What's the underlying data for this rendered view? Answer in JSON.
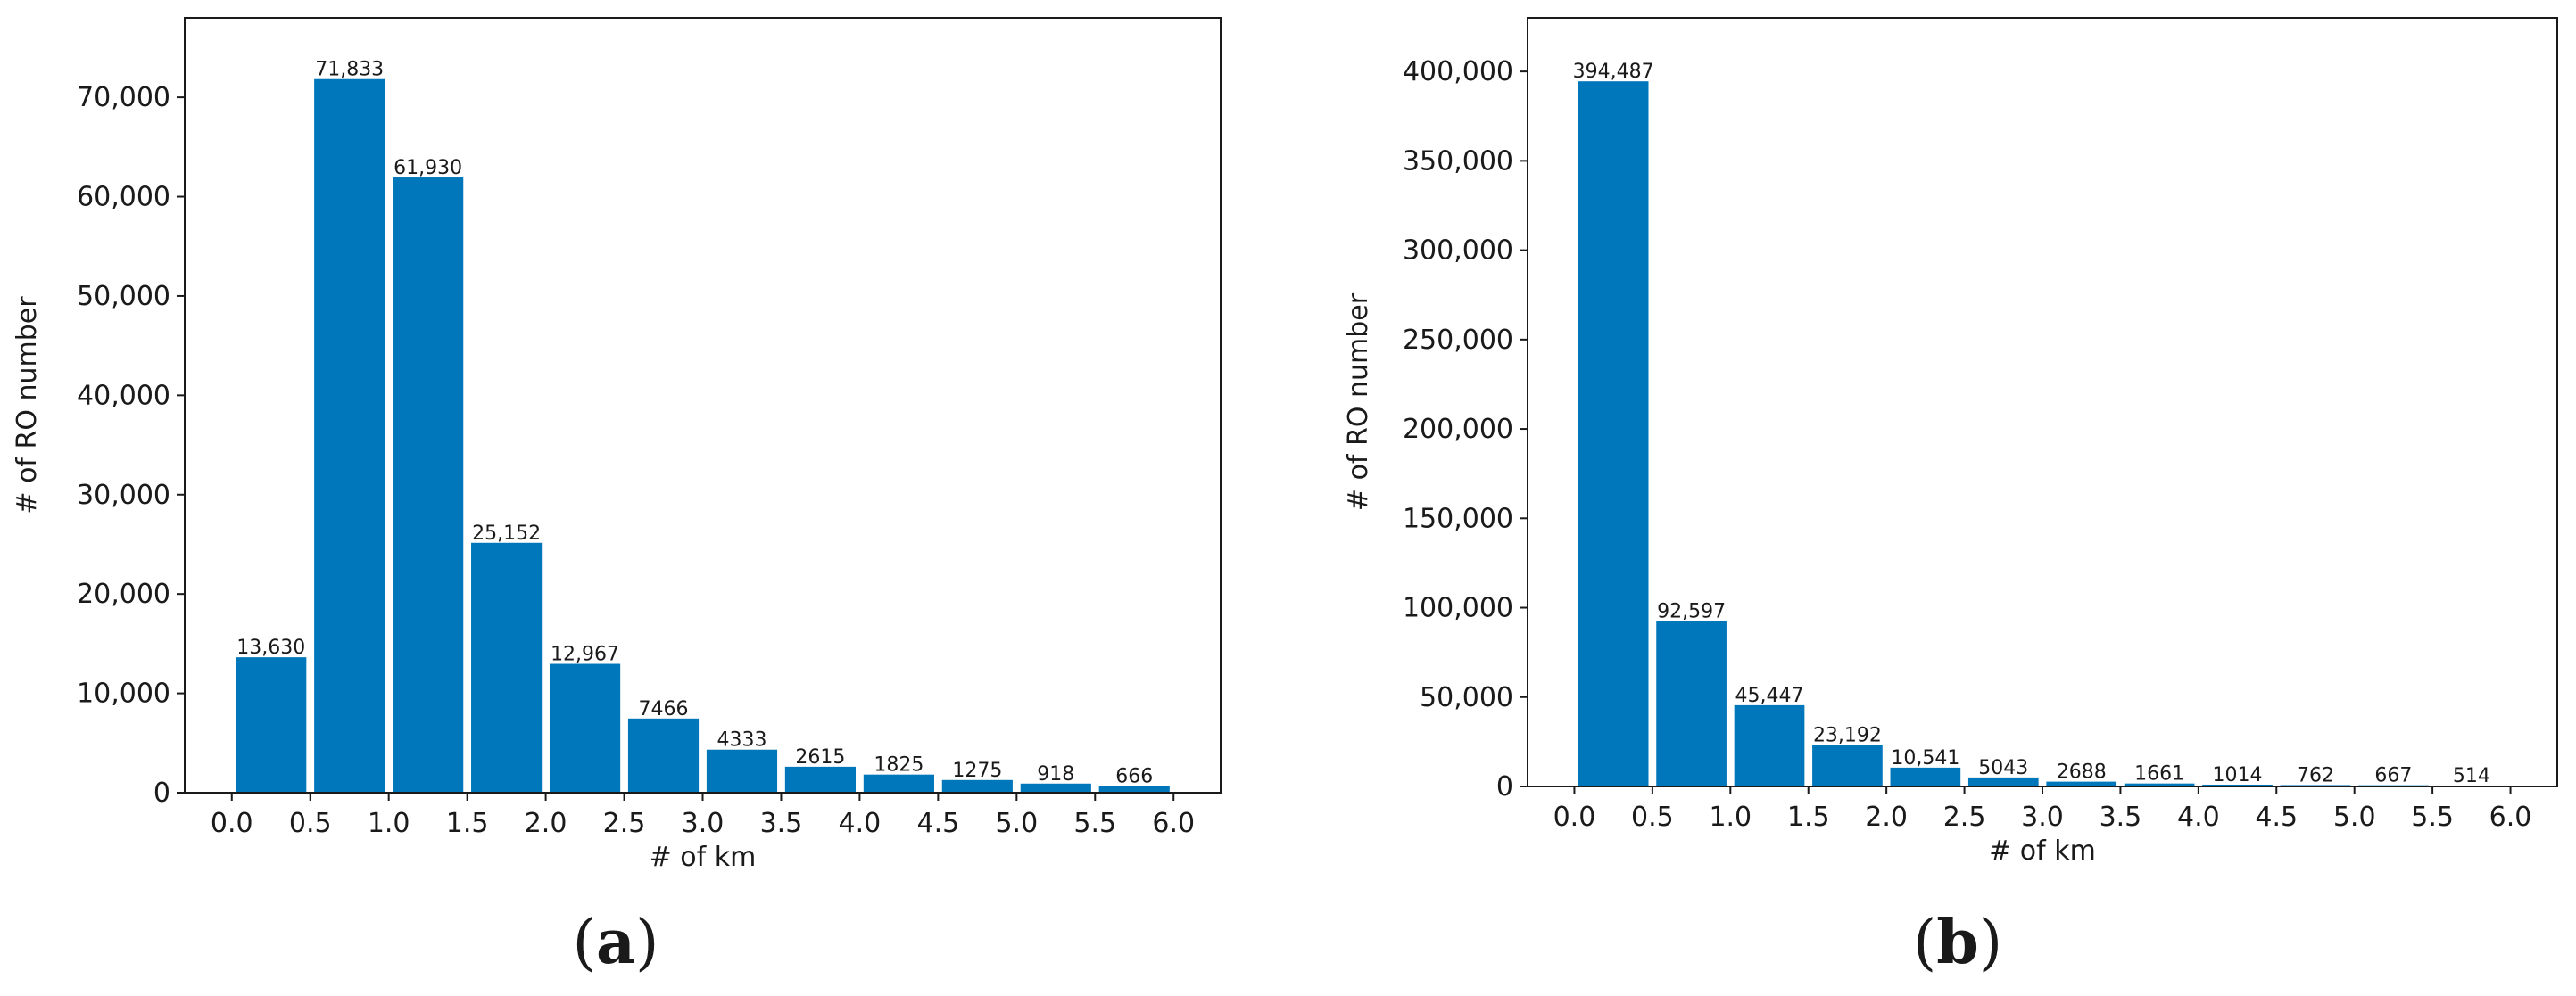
{
  "chart_data": [
    {
      "type": "bar",
      "panel_label": {
        "open": "(",
        "letter": "a",
        "close": ")"
      },
      "xlabel": "# of km",
      "ylabel": "# of RO number",
      "xlim": [
        -0.3,
        6.3
      ],
      "ylim": [
        0,
        78000
      ],
      "xticks": [
        0.0,
        0.5,
        1.0,
        1.5,
        2.0,
        2.5,
        3.0,
        3.5,
        4.0,
        4.5,
        5.0,
        5.5,
        6.0
      ],
      "xtick_labels": [
        "0.0",
        "0.5",
        "1.0",
        "1.5",
        "2.0",
        "2.5",
        "3.0",
        "3.5",
        "4.0",
        "4.5",
        "5.0",
        "5.5",
        "6.0"
      ],
      "yticks": [
        0,
        10000,
        20000,
        30000,
        40000,
        50000,
        60000,
        70000
      ],
      "ytick_labels": [
        "0",
        "10,000",
        "20,000",
        "30,000",
        "40,000",
        "50,000",
        "60,000",
        "70,000"
      ],
      "bin_edges": [
        0.0,
        0.5,
        1.0,
        1.5,
        2.0,
        2.5,
        3.0,
        3.5,
        4.0,
        4.5,
        5.0,
        5.5,
        6.0
      ],
      "values": [
        13630,
        71833,
        61930,
        25152,
        12967,
        7466,
        4333,
        2615,
        1825,
        1275,
        918,
        666
      ],
      "value_labels": [
        "13,630",
        "71,833",
        "61,930",
        "25,152",
        "12,967",
        "7466",
        "4333",
        "2615",
        "1825",
        "1275",
        "918",
        "666"
      ],
      "bar_color": "#0077bb",
      "grid": false
    },
    {
      "type": "bar",
      "panel_label": {
        "open": "(",
        "letter": "b",
        "close": ")"
      },
      "xlabel": "# of km",
      "ylabel": "# of RO number",
      "xlim": [
        -0.3,
        6.3
      ],
      "ylim": [
        0,
        430000
      ],
      "xticks": [
        0.0,
        0.5,
        1.0,
        1.5,
        2.0,
        2.5,
        3.0,
        3.5,
        4.0,
        4.5,
        5.0,
        5.5,
        6.0
      ],
      "xtick_labels": [
        "0.0",
        "0.5",
        "1.0",
        "1.5",
        "2.0",
        "2.5",
        "3.0",
        "3.5",
        "4.0",
        "4.5",
        "5.0",
        "5.5",
        "6.0"
      ],
      "yticks": [
        0,
        50000,
        100000,
        150000,
        200000,
        250000,
        300000,
        350000,
        400000
      ],
      "ytick_labels": [
        "0",
        "50,000",
        "100,000",
        "150,000",
        "200,000",
        "250,000",
        "300,000",
        "350,000",
        "400,000"
      ],
      "bin_edges": [
        0.0,
        0.5,
        1.0,
        1.5,
        2.0,
        2.5,
        3.0,
        3.5,
        4.0,
        4.5,
        5.0,
        5.5,
        6.0
      ],
      "values": [
        394487,
        92597,
        45447,
        23192,
        10541,
        5043,
        2688,
        1661,
        1014,
        762,
        667,
        514
      ],
      "value_labels": [
        "394,487",
        "92,597",
        "45,447",
        "23,192",
        "10,541",
        "5043",
        "2688",
        "1661",
        "1014",
        "762",
        "667",
        "514"
      ],
      "bar_color": "#0077bb",
      "grid": false
    }
  ]
}
